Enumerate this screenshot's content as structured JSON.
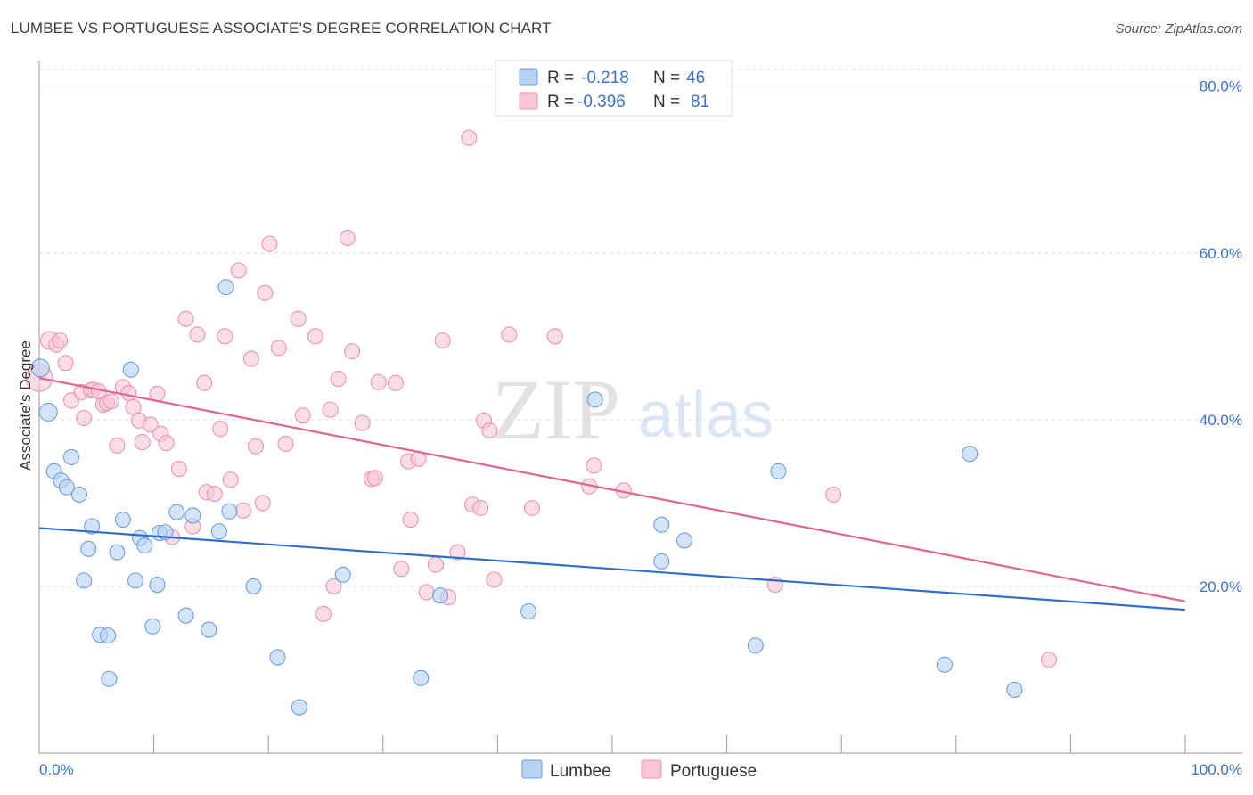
{
  "title": "LUMBEE VS PORTUGUESE ASSOCIATE'S DEGREE CORRELATION CHART",
  "source": "Source: ZipAtlas.com",
  "watermark": {
    "zip": "ZIP",
    "atlas": "atlas"
  },
  "colors": {
    "lumbee_fill": "#b8d2f4",
    "lumbee_stroke": "#6d9fe0",
    "lumbee_line": "#2f6fcc",
    "portuguese_fill": "#f8c6d6",
    "portuguese_stroke": "#ec93b0",
    "portuguese_line": "#e3658f",
    "grid": "#dddddd",
    "tick_text": "#3b73c8"
  },
  "legend": {
    "r_label": "R =",
    "n_label": "N =",
    "lumbee": {
      "r": "-0.218",
      "n": "46"
    },
    "portuguese": {
      "r": "-0.396",
      "n": "81"
    }
  },
  "chart_data": {
    "type": "scatter",
    "title": "LUMBEE VS PORTUGUESE ASSOCIATE'S DEGREE CORRELATION CHART",
    "xlabel": "",
    "ylabel": "Associate's Degree",
    "xlim": [
      0,
      100
    ],
    "ylim": [
      0,
      82
    ],
    "x_tick_labels": {
      "left": "0.0%",
      "right": "100.0%"
    },
    "y_ticks": [
      {
        "value": 20,
        "label": "20.0%"
      },
      {
        "value": 40,
        "label": "40.0%"
      },
      {
        "value": 60,
        "label": "60.0%"
      },
      {
        "value": 80,
        "label": "80.0%"
      }
    ],
    "series": [
      {
        "name": "Lumbee",
        "r": -0.218,
        "n": 46,
        "trend": {
          "x": [
            0,
            100
          ],
          "y": [
            27.0,
            17.2
          ]
        },
        "points": [
          [
            0.1,
            46.2
          ],
          [
            0.8,
            40.9
          ],
          [
            1.3,
            33.8
          ],
          [
            1.9,
            32.7
          ],
          [
            2.4,
            31.9
          ],
          [
            2.8,
            35.5
          ],
          [
            3.5,
            31.0
          ],
          [
            3.9,
            20.7
          ],
          [
            4.3,
            24.5
          ],
          [
            4.6,
            27.2
          ],
          [
            5.3,
            14.2
          ],
          [
            6.0,
            14.1
          ],
          [
            6.1,
            8.9
          ],
          [
            6.8,
            24.1
          ],
          [
            7.3,
            28.0
          ],
          [
            8.0,
            46.0
          ],
          [
            8.4,
            20.7
          ],
          [
            8.8,
            25.8
          ],
          [
            9.2,
            24.9
          ],
          [
            9.9,
            15.2
          ],
          [
            10.5,
            26.4
          ],
          [
            10.3,
            20.2
          ],
          [
            11.0,
            26.5
          ],
          [
            12.0,
            28.9
          ],
          [
            12.8,
            16.5
          ],
          [
            13.4,
            28.5
          ],
          [
            14.8,
            14.8
          ],
          [
            15.7,
            26.6
          ],
          [
            16.3,
            55.9
          ],
          [
            16.6,
            29.0
          ],
          [
            18.7,
            20.0
          ],
          [
            20.8,
            11.5
          ],
          [
            22.7,
            5.5
          ],
          [
            26.5,
            21.4
          ],
          [
            33.3,
            9.0
          ],
          [
            35.0,
            18.9
          ],
          [
            42.7,
            17.0
          ],
          [
            48.5,
            42.4
          ],
          [
            54.3,
            27.4
          ],
          [
            54.3,
            23.0
          ],
          [
            56.3,
            25.5
          ],
          [
            62.5,
            12.9
          ],
          [
            64.5,
            33.8
          ],
          [
            79.0,
            10.6
          ],
          [
            81.2,
            35.9
          ],
          [
            85.1,
            7.6
          ]
        ]
      },
      {
        "name": "Portuguese",
        "r": -0.396,
        "n": 81,
        "trend": {
          "x": [
            0,
            100
          ],
          "y": [
            45.0,
            18.2
          ]
        },
        "points": [
          [
            0.0,
            45.0
          ],
          [
            0.9,
            49.5
          ],
          [
            1.5,
            49.0
          ],
          [
            1.8,
            49.5
          ],
          [
            2.3,
            46.8
          ],
          [
            2.8,
            42.3
          ],
          [
            3.7,
            43.3
          ],
          [
            3.9,
            40.2
          ],
          [
            4.5,
            43.5
          ],
          [
            4.7,
            43.6
          ],
          [
            5.2,
            43.4
          ],
          [
            5.6,
            41.8
          ],
          [
            5.9,
            42.0
          ],
          [
            6.3,
            42.2
          ],
          [
            6.8,
            36.9
          ],
          [
            7.3,
            43.9
          ],
          [
            7.8,
            43.2
          ],
          [
            8.2,
            41.5
          ],
          [
            8.7,
            39.9
          ],
          [
            9.0,
            37.3
          ],
          [
            9.7,
            39.4
          ],
          [
            10.3,
            43.1
          ],
          [
            10.6,
            38.3
          ],
          [
            11.1,
            37.2
          ],
          [
            11.6,
            25.9
          ],
          [
            12.2,
            34.1
          ],
          [
            12.8,
            52.1
          ],
          [
            13.4,
            27.2
          ],
          [
            13.8,
            50.2
          ],
          [
            14.4,
            44.4
          ],
          [
            14.6,
            31.3
          ],
          [
            15.3,
            31.1
          ],
          [
            15.8,
            38.9
          ],
          [
            16.2,
            50.0
          ],
          [
            16.7,
            32.8
          ],
          [
            17.4,
            57.9
          ],
          [
            17.8,
            29.1
          ],
          [
            18.5,
            47.3
          ],
          [
            18.9,
            36.8
          ],
          [
            19.5,
            30.0
          ],
          [
            19.7,
            55.2
          ],
          [
            20.1,
            61.1
          ],
          [
            20.9,
            48.6
          ],
          [
            21.5,
            37.1
          ],
          [
            22.6,
            52.1
          ],
          [
            23.0,
            40.5
          ],
          [
            24.1,
            50.0
          ],
          [
            24.8,
            16.7
          ],
          [
            25.4,
            41.2
          ],
          [
            25.7,
            20.0
          ],
          [
            26.1,
            44.9
          ],
          [
            26.9,
            61.8
          ],
          [
            27.3,
            48.2
          ],
          [
            28.2,
            39.6
          ],
          [
            29.0,
            32.9
          ],
          [
            29.3,
            33.0
          ],
          [
            29.6,
            44.5
          ],
          [
            31.1,
            44.4
          ],
          [
            31.6,
            22.1
          ],
          [
            32.2,
            35.0
          ],
          [
            32.4,
            28.0
          ],
          [
            33.1,
            35.3
          ],
          [
            33.8,
            19.3
          ],
          [
            34.6,
            22.6
          ],
          [
            35.2,
            49.5
          ],
          [
            35.7,
            18.7
          ],
          [
            36.5,
            24.1
          ],
          [
            37.5,
            73.8
          ],
          [
            37.8,
            29.8
          ],
          [
            38.5,
            29.4
          ],
          [
            38.8,
            39.9
          ],
          [
            39.3,
            38.7
          ],
          [
            39.7,
            20.8
          ],
          [
            41.0,
            50.2
          ],
          [
            43.0,
            29.4
          ],
          [
            45.0,
            50.0
          ],
          [
            48.0,
            32.0
          ],
          [
            48.4,
            34.5
          ],
          [
            51.0,
            31.5
          ],
          [
            64.2,
            20.2
          ],
          [
            69.3,
            31.0
          ],
          [
            88.1,
            11.2
          ]
        ]
      }
    ]
  },
  "bottom_legend": [
    {
      "name": "Lumbee"
    },
    {
      "name": "Portuguese"
    }
  ]
}
